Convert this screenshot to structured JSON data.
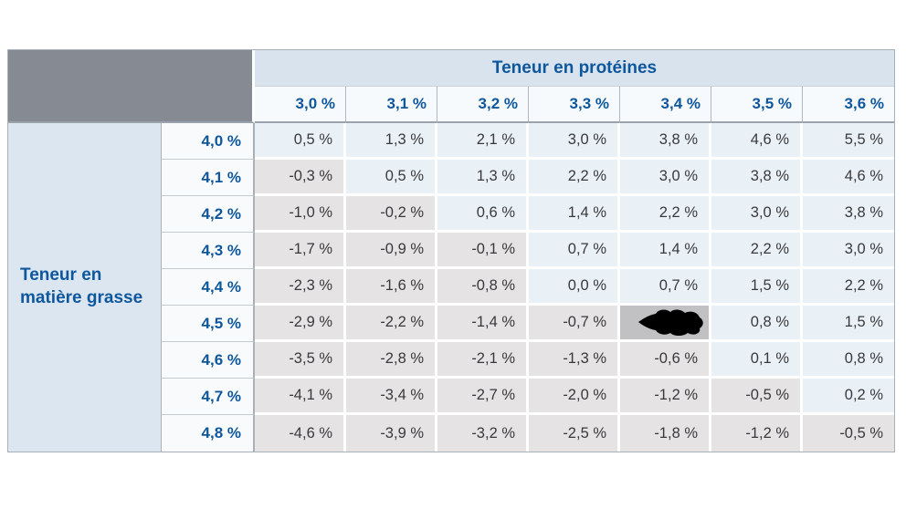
{
  "table": {
    "col_group_header": "Teneur en protéines",
    "row_group_header": "Teneur en matière grasse",
    "col_headers": [
      "3,0 %",
      "3,1 %",
      "3,2 %",
      "3,3 %",
      "3,4 %",
      "3,5 %",
      "3,6 %"
    ],
    "rows": [
      {
        "label": "4,0 %",
        "values": [
          "0,5 %",
          "1,3 %",
          "2,1 %",
          "3,0 %",
          "3,8 %",
          "4,6 %",
          "5,5 %"
        ]
      },
      {
        "label": "4,1 %",
        "values": [
          "-0,3 %",
          "0,5 %",
          "1,3 %",
          "2,2 %",
          "3,0 %",
          "3,8 %",
          "4,6 %"
        ]
      },
      {
        "label": "4,2 %",
        "values": [
          "-1,0 %",
          "-0,2 %",
          "0,6 %",
          "1,4 %",
          "2,2 %",
          "3,0 %",
          "3,8 %"
        ]
      },
      {
        "label": "4,3 %",
        "values": [
          "-1,7 %",
          "-0,9 %",
          "-0,1 %",
          "0,7 %",
          "1,4 %",
          "2,2 %",
          "3,0 %"
        ]
      },
      {
        "label": "4,4 %",
        "values": [
          "-2,3 %",
          "-1,6 %",
          "-0,8 %",
          "0,0 %",
          "0,7 %",
          "1,5 %",
          "2,2 %"
        ]
      },
      {
        "label": "4,5 %",
        "values": [
          "-2,9 %",
          "-2,2 %",
          "-1,4 %",
          "-0,7 %",
          {
            "redacted": true
          },
          "0,8 %",
          "1,5 %"
        ]
      },
      {
        "label": "4,6 %",
        "values": [
          "-3,5 %",
          "-2,8 %",
          "-2,1 %",
          "-1,3 %",
          "-0,6 %",
          "0,1 %",
          "0,8 %"
        ]
      },
      {
        "label": "4,7 %",
        "values": [
          "-4,1 %",
          "-3,4 %",
          "-2,7 %",
          "-2,0 %",
          "-1,2 %",
          "-0,5 %",
          "0,2 %"
        ]
      },
      {
        "label": "4,8 %",
        "values": [
          "-4,6 %",
          "-3,9 %",
          "-3,2 %",
          "-2,5 %",
          "-1,8 %",
          "-1,2 %",
          "-0,5 %"
        ]
      }
    ]
  },
  "colors": {
    "header_blue_text": "#0f579d",
    "band_bg": "#d8e3ed",
    "fat_header_bg": "#dbe6f1",
    "corner_gray": "#868a93",
    "positive_cell_bg": "#eaf1f6",
    "negative_cell_bg": "#e5e3e4",
    "redacted_cell_bg": "#c1c0c3",
    "value_text": "#39393b"
  }
}
